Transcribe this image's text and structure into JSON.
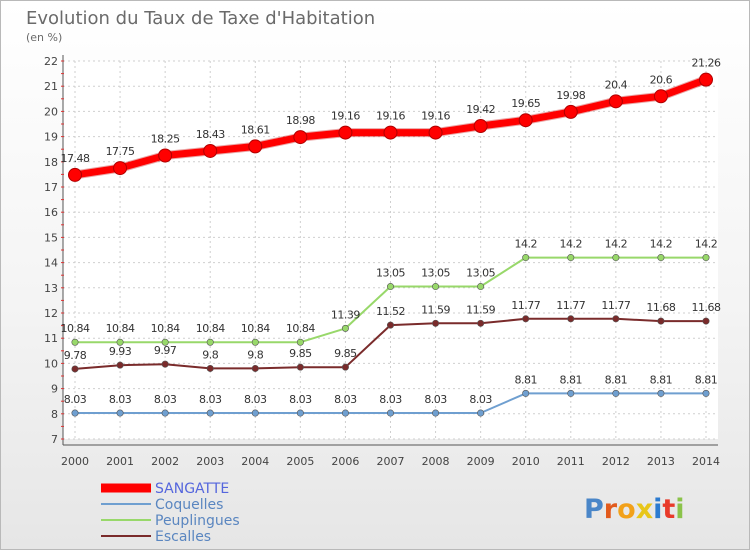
{
  "chart_data": {
    "type": "line",
    "title": "Evolution du Taux de Taxe d'Habitation",
    "subtitle": "(en %)",
    "x": [
      2000,
      2001,
      2002,
      2003,
      2004,
      2005,
      2006,
      2007,
      2008,
      2009,
      2010,
      2011,
      2012,
      2013,
      2014
    ],
    "ylim": [
      7,
      22
    ],
    "yticks": [
      7,
      8,
      9,
      10,
      11,
      12,
      13,
      14,
      15,
      16,
      17,
      18,
      19,
      20,
      21,
      22
    ],
    "grid": true,
    "legend": "bottom-left",
    "series": [
      {
        "name": "SANGATTE",
        "color": "#ff0000",
        "values": [
          17.48,
          17.75,
          18.25,
          18.43,
          18.61,
          18.98,
          19.16,
          19.16,
          19.16,
          19.42,
          19.65,
          19.98,
          20.4,
          20.6,
          21.26
        ],
        "labels": [
          "17.48",
          "17.75",
          "18.25",
          "18.43",
          "18.61",
          "18.98",
          "19.16",
          "19.16",
          "19.16",
          "19.42",
          "19.65",
          "19.98",
          "20.4",
          "20.6",
          "21.26"
        ]
      },
      {
        "name": "Coquelles",
        "color": "#6f9fd0",
        "values": [
          8.03,
          8.03,
          8.03,
          8.03,
          8.03,
          8.03,
          8.03,
          8.03,
          8.03,
          8.03,
          8.81,
          8.81,
          8.81,
          8.81,
          8.81
        ],
        "labels": [
          "8.03",
          "8.03",
          "8.03",
          "8.03",
          "8.03",
          "8.03",
          "8.03",
          "8.03",
          "8.03",
          "8.03",
          "8.81",
          "8.81",
          "8.81",
          "8.81",
          "8.81"
        ]
      },
      {
        "name": "Peuplingues",
        "color": "#98d86a",
        "values": [
          10.84,
          10.84,
          10.84,
          10.84,
          10.84,
          10.84,
          11.39,
          13.05,
          13.05,
          13.05,
          14.2,
          14.2,
          14.2,
          14.2,
          14.2
        ],
        "labels": [
          "10.84",
          "10.84",
          "10.84",
          "10.84",
          "10.84",
          "10.84",
          "11.39",
          "13.05",
          "13.05",
          "13.05",
          "14.2",
          "14.2",
          "14.2",
          "14.2",
          "14.2"
        ]
      },
      {
        "name": "Escalles",
        "color": "#7a2b2b",
        "values": [
          9.78,
          9.93,
          9.97,
          9.8,
          9.8,
          9.85,
          9.85,
          11.52,
          11.59,
          11.59,
          11.77,
          11.77,
          11.77,
          11.68,
          11.68
        ],
        "labels": [
          "9.78",
          "9.93",
          "9.97",
          "9.8",
          "9.8",
          "9.85",
          "9.85",
          "11.52",
          "11.59",
          "11.59",
          "11.77",
          "11.77",
          "11.77",
          "11.68",
          "11.68"
        ]
      }
    ]
  },
  "logo": {
    "text": "Proxiti"
  }
}
